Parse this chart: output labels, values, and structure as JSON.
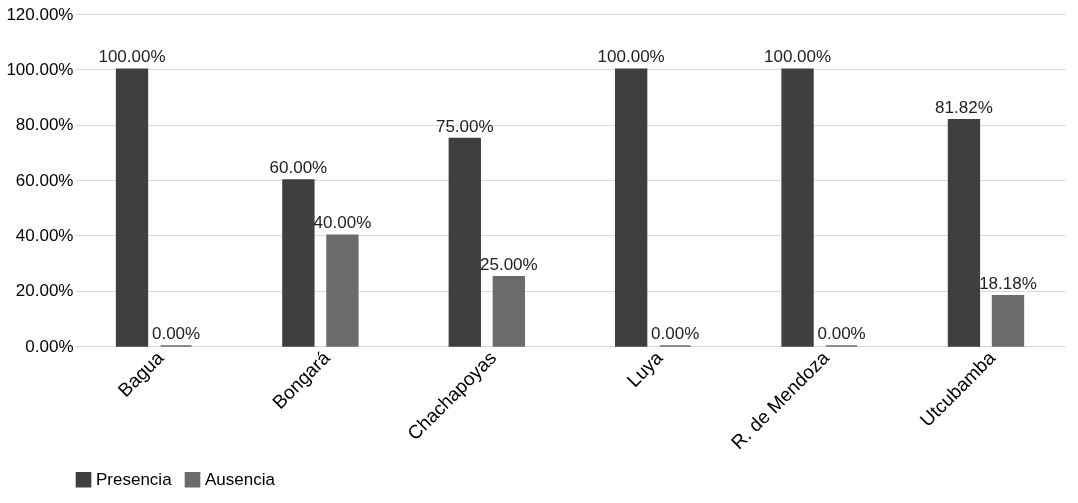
{
  "chart_data": {
    "type": "bar",
    "categories": [
      "Bagua",
      "Bongará",
      "Chachapoyas",
      "Luya",
      "R. de Mendoza",
      "Utcubamba"
    ],
    "series": [
      {
        "name": "Presencia",
        "color": "#3f3f3f",
        "values": [
          100,
          60,
          75,
          100,
          100,
          81.82
        ],
        "value_labels": [
          "100.00%",
          "60.00%",
          "75.00%",
          "100.00%",
          "100.00%",
          "81.82%"
        ]
      },
      {
        "name": "Ausencia",
        "color": "#6b6b6b",
        "values": [
          0,
          40,
          25,
          0,
          0,
          18.18
        ],
        "value_labels": [
          "0.00%",
          "40.00%",
          "25.00%",
          "0.00%",
          "0.00%",
          "18.18%"
        ]
      }
    ],
    "ylim": [
      0,
      120
    ],
    "yticks": [
      {
        "value": 0,
        "label": "0.00%"
      },
      {
        "value": 20,
        "label": "20.00%"
      },
      {
        "value": 40,
        "label": "40.00%"
      },
      {
        "value": 60,
        "label": "60.00%"
      },
      {
        "value": 80,
        "label": "80.00%"
      },
      {
        "value": 100,
        "label": "100.00%"
      },
      {
        "value": 120,
        "label": "120.00%"
      }
    ],
    "grid": "y",
    "legend": "bottom"
  }
}
